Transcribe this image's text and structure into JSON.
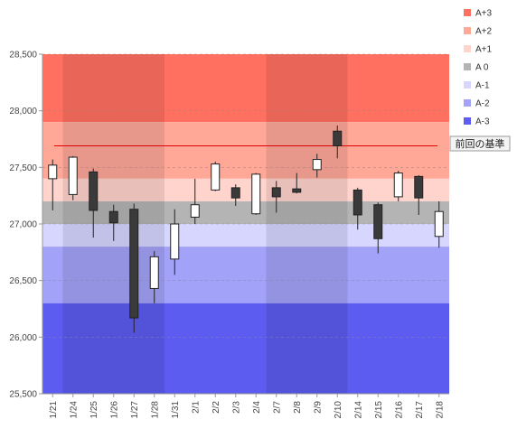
{
  "chart_data": {
    "type": "candlestick",
    "title": "",
    "xlabel": "",
    "ylabel": "",
    "ylim": [
      25500,
      28500
    ],
    "y_ticks": [
      25500,
      26000,
      26500,
      27000,
      27500,
      28000,
      28500
    ],
    "y_tick_labels": [
      "25,500",
      "26,000",
      "26,500",
      "27,000",
      "27,500",
      "28,000",
      "28,500"
    ],
    "grid": "horizontal dashed",
    "legend_position": "right",
    "categories": [
      "1/21",
      "1/24",
      "1/25",
      "1/26",
      "1/27",
      "1/28",
      "1/31",
      "2/1",
      "2/2",
      "2/3",
      "2/4",
      "2/7",
      "2/8",
      "2/9",
      "2/10",
      "2/14",
      "2/15",
      "2/16",
      "2/17",
      "2/18"
    ],
    "candles": [
      {
        "open": 27400,
        "high": 27570,
        "low": 27120,
        "close": 27520
      },
      {
        "open": 27260,
        "high": 27600,
        "low": 27210,
        "close": 27590
      },
      {
        "open": 27460,
        "high": 27490,
        "low": 26880,
        "close": 27120
      },
      {
        "open": 27110,
        "high": 27170,
        "low": 26850,
        "close": 27010
      },
      {
        "open": 27130,
        "high": 27180,
        "low": 26040,
        "close": 26170
      },
      {
        "open": 26430,
        "high": 26760,
        "low": 26300,
        "close": 26710
      },
      {
        "open": 26690,
        "high": 27130,
        "low": 26550,
        "close": 27000
      },
      {
        "open": 27060,
        "high": 27400,
        "low": 27000,
        "close": 27170
      },
      {
        "open": 27300,
        "high": 27550,
        "low": 27290,
        "close": 27530
      },
      {
        "open": 27320,
        "high": 27350,
        "low": 27160,
        "close": 27230
      },
      {
        "open": 27090,
        "high": 27450,
        "low": 27080,
        "close": 27440
      },
      {
        "open": 27320,
        "high": 27380,
        "low": 27100,
        "close": 27240
      },
      {
        "open": 27310,
        "high": 27450,
        "low": 27270,
        "close": 27280
      },
      {
        "open": 27480,
        "high": 27620,
        "low": 27410,
        "close": 27570
      },
      {
        "open": 27820,
        "high": 27870,
        "low": 27580,
        "close": 27690
      },
      {
        "open": 27300,
        "high": 27320,
        "low": 26950,
        "close": 27080
      },
      {
        "open": 27170,
        "high": 27190,
        "low": 26740,
        "close": 26870
      },
      {
        "open": 27240,
        "high": 27470,
        "low": 27200,
        "close": 27450
      },
      {
        "open": 27420,
        "high": 27430,
        "low": 27080,
        "close": 27230
      },
      {
        "open": 26890,
        "high": 27200,
        "low": 26790,
        "close": 27110
      }
    ],
    "bands": [
      {
        "name": "A+3",
        "from": 27900,
        "to": 28500,
        "color": "#FF7060"
      },
      {
        "name": "A+2",
        "from": 27400,
        "to": 27900,
        "color": "#FFA898"
      },
      {
        "name": "A+1",
        "from": 27200,
        "to": 27400,
        "color": "#FFD4CC"
      },
      {
        "name": "A 0",
        "from": 27000,
        "to": 27200,
        "color": "#B4B4B4"
      },
      {
        "name": "A-1",
        "from": 26800,
        "to": 27000,
        "color": "#D6D6FF"
      },
      {
        "name": "A-2",
        "from": 26300,
        "to": 26800,
        "color": "#A2A2F8"
      },
      {
        "name": "A-3",
        "from": 25500,
        "to": 26300,
        "color": "#5C5CF0"
      }
    ],
    "week_shading_groups": [
      [
        1,
        2,
        3,
        4,
        5
      ],
      [
        11,
        12,
        13,
        14
      ]
    ],
    "reference_line": {
      "value": 27690,
      "label": "前回の基準",
      "color": "#E00000"
    },
    "colors": {
      "up_body": "#ffffff",
      "down_body": "#3a3a3a",
      "outline": "#222222"
    }
  }
}
